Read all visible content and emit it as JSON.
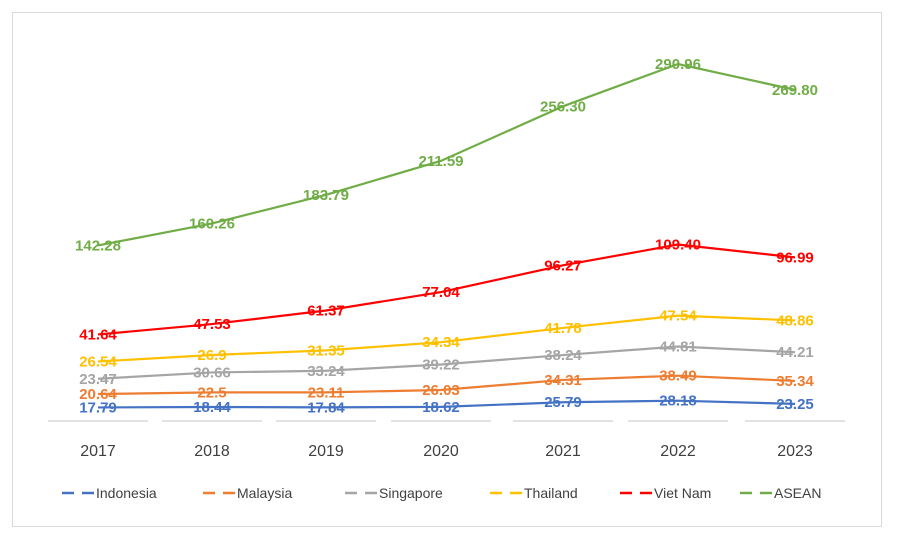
{
  "chart_data": {
    "type": "line",
    "categories": [
      "2017",
      "2018",
      "2019",
      "2020",
      "2021",
      "2022",
      "2023"
    ],
    "series": [
      {
        "name": "Indonesia",
        "color": "#4472c4",
        "values": [
          17.79,
          18.44,
          17.84,
          18.62,
          25.79,
          28.18,
          23.25
        ],
        "labels": [
          "17.79",
          "18.44",
          "17.84",
          "18.62",
          "25.79",
          "28.18",
          "23.25"
        ]
      },
      {
        "name": "Malaysia",
        "color": "#ed7d31",
        "values": [
          20.64,
          22.5,
          23.11,
          26.03,
          34.31,
          38.49,
          35.34
        ],
        "labels": [
          "20.64",
          "22.5",
          "23.11",
          "26.03",
          "34.31",
          "38.49",
          "35.34"
        ]
      },
      {
        "name": "Singapore",
        "color": "#a5a5a5",
        "values": [
          23.47,
          30.66,
          33.24,
          39.22,
          38.24,
          44.81,
          44.21
        ],
        "labels": [
          "23.47",
          "30.66",
          "33.24",
          "39.22",
          "38.24",
          "44.81",
          "44.21"
        ]
      },
      {
        "name": "Thailand",
        "color": "#ffc000",
        "values": [
          26.54,
          26.9,
          31.35,
          34.34,
          41.78,
          47.54,
          48.86
        ],
        "labels": [
          "26.54",
          "26.9",
          "31.35",
          "34.34",
          "41.78",
          "47.54",
          "48.86"
        ]
      },
      {
        "name": "Viet Nam",
        "color": "#ff0000",
        "values": [
          41.64,
          47.53,
          61.37,
          77.04,
          96.27,
          109.4,
          96.99
        ],
        "labels": [
          "41.64",
          "47.53",
          "61.37",
          "77.04",
          "96.27",
          "109.40",
          "96.99"
        ]
      },
      {
        "name": "ASEAN",
        "color": "#70ad47",
        "values": [
          142.28,
          160.26,
          183.79,
          211.59,
          256.3,
          290.96,
          269.8
        ],
        "labels": [
          "142.28",
          "160.26",
          "183.79",
          "211.59",
          "256.30",
          "290.96",
          "269.80"
        ]
      }
    ],
    "legend_position": "bottom",
    "grid": false
  }
}
